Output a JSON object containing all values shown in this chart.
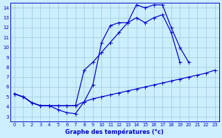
{
  "title": "Graphe des températures (°c)",
  "bg_color": "#cceeff",
  "grid_color": "#99cccc",
  "line_color": "#0000cc",
  "xlim": [
    -0.5,
    23.5
  ],
  "ylim": [
    2.5,
    14.5
  ],
  "xticks": [
    0,
    1,
    2,
    3,
    4,
    5,
    6,
    7,
    8,
    9,
    10,
    11,
    12,
    13,
    14,
    15,
    16,
    17,
    18,
    19,
    20,
    21,
    22,
    23
  ],
  "yticks": [
    3,
    4,
    5,
    6,
    7,
    8,
    9,
    10,
    11,
    12,
    13,
    14
  ],
  "line_bottom_x": [
    0,
    1,
    2,
    3,
    4,
    5,
    6,
    7,
    8,
    9,
    10,
    11,
    12,
    13,
    14,
    15,
    16,
    17,
    18,
    19,
    20,
    21,
    22,
    23
  ],
  "line_bottom_y": [
    5.3,
    5.0,
    4.4,
    4.1,
    4.1,
    4.1,
    4.1,
    4.1,
    4.5,
    4.8,
    5.0,
    5.2,
    5.4,
    5.6,
    5.8,
    6.0,
    6.2,
    6.4,
    6.6,
    6.8,
    7.0,
    7.2,
    7.4,
    7.7
  ],
  "line_mid_x": [
    0,
    1,
    2,
    3,
    4,
    5,
    6,
    7,
    8,
    9,
    10,
    11,
    12,
    13,
    14,
    15,
    16,
    17,
    18,
    19,
    20,
    21,
    22,
    23
  ],
  "line_mid_y": [
    5.3,
    5.0,
    4.4,
    4.1,
    4.1,
    4.1,
    4.1,
    4.1,
    7.7,
    8.5,
    9.5,
    10.5,
    11.5,
    12.5,
    13.0,
    12.5,
    13.0,
    13.3,
    11.5,
    8.5,
    null,
    null,
    null,
    null
  ],
  "line_top_x": [
    0,
    1,
    2,
    3,
    4,
    5,
    6,
    7,
    8,
    9,
    10,
    11,
    12,
    13,
    14,
    15,
    16,
    17,
    18,
    19,
    20,
    21,
    22,
    23
  ],
  "line_top_y": [
    5.3,
    5.0,
    4.4,
    4.1,
    4.1,
    3.7,
    3.4,
    3.3,
    4.5,
    6.2,
    10.5,
    12.2,
    12.5,
    12.5,
    14.3,
    14.0,
    14.3,
    14.3,
    12.0,
    10.0,
    8.5,
    null,
    null,
    null
  ]
}
